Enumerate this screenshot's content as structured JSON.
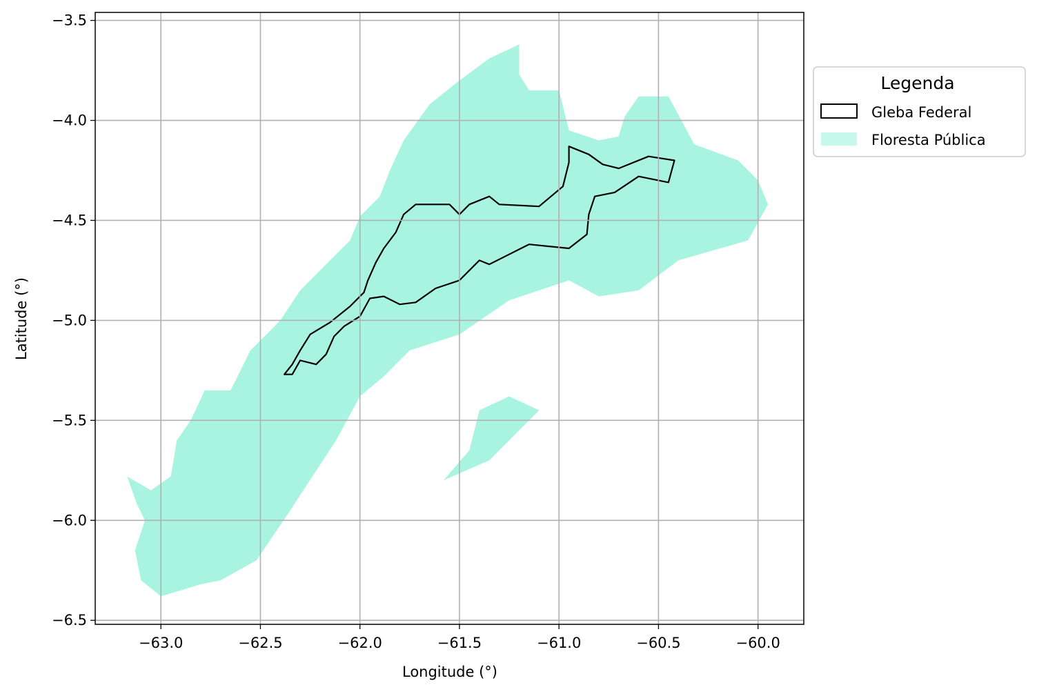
{
  "chart_data": {
    "type": "map",
    "xlabel": "Longitude (°)",
    "ylabel": "Latitude (°)",
    "xlim": [
      -63.33,
      -59.77
    ],
    "ylim": [
      -6.52,
      -3.46
    ],
    "xticks": [
      -63.0,
      -62.5,
      -62.0,
      -61.5,
      -61.0,
      -60.5,
      -60.0
    ],
    "yticks": [
      -3.5,
      -4.0,
      -4.5,
      -5.0,
      -5.5,
      -6.0,
      -6.5
    ],
    "xtick_labels": [
      "−63.0",
      "−62.5",
      "−62.0",
      "−61.5",
      "−61.0",
      "−60.5",
      "−60.0"
    ],
    "ytick_labels": [
      "−3.5",
      "−4.0",
      "−4.5",
      "−5.0",
      "−5.5",
      "−6.0",
      "−6.5"
    ],
    "grid": true,
    "legend": {
      "title": "Legenda",
      "placement": "outside-right-top",
      "entries": [
        {
          "label": "Gleba Federal",
          "style": "outline",
          "color": "#000000"
        },
        {
          "label": "Floresta Pública",
          "style": "fill",
          "color": "#a8f4e0"
        }
      ]
    },
    "layers": [
      {
        "name": "Floresta Pública",
        "style": "fill",
        "color": "#a8f4e0",
        "polygons": [
          [
            [
              -62.0,
              -4.48
            ],
            [
              -61.9,
              -4.38
            ],
            [
              -61.85,
              -4.25
            ],
            [
              -61.78,
              -4.1
            ],
            [
              -61.65,
              -3.92
            ],
            [
              -61.5,
              -3.8
            ],
            [
              -61.35,
              -3.69
            ],
            [
              -61.2,
              -3.62
            ],
            [
              -61.2,
              -3.77
            ],
            [
              -61.15,
              -3.85
            ],
            [
              -61.0,
              -3.85
            ],
            [
              -60.95,
              -4.05
            ],
            [
              -60.8,
              -4.1
            ],
            [
              -60.7,
              -4.08
            ],
            [
              -60.67,
              -3.98
            ],
            [
              -60.6,
              -3.88
            ],
            [
              -60.45,
              -3.88
            ],
            [
              -60.32,
              -4.12
            ],
            [
              -60.1,
              -4.2
            ],
            [
              -60.0,
              -4.3
            ],
            [
              -59.95,
              -4.42
            ],
            [
              -60.05,
              -4.6
            ],
            [
              -60.4,
              -4.7
            ],
            [
              -60.6,
              -4.85
            ],
            [
              -60.8,
              -4.88
            ],
            [
              -60.95,
              -4.8
            ],
            [
              -61.25,
              -4.9
            ],
            [
              -61.5,
              -5.07
            ],
            [
              -61.75,
              -5.15
            ],
            [
              -61.88,
              -5.28
            ],
            [
              -62.0,
              -5.38
            ],
            [
              -62.12,
              -5.6
            ],
            [
              -62.35,
              -5.95
            ],
            [
              -62.52,
              -6.2
            ],
            [
              -62.7,
              -6.3
            ],
            [
              -62.8,
              -6.32
            ],
            [
              -63.0,
              -6.38
            ],
            [
              -63.1,
              -6.3
            ],
            [
              -63.13,
              -6.15
            ],
            [
              -63.08,
              -6.0
            ],
            [
              -63.12,
              -5.92
            ],
            [
              -63.17,
              -5.78
            ],
            [
              -63.05,
              -5.85
            ],
            [
              -62.95,
              -5.78
            ],
            [
              -62.92,
              -5.6
            ],
            [
              -62.85,
              -5.5
            ],
            [
              -62.78,
              -5.35
            ],
            [
              -62.65,
              -5.35
            ],
            [
              -62.55,
              -5.15
            ],
            [
              -62.4,
              -5.0
            ],
            [
              -62.3,
              -4.85
            ],
            [
              -62.15,
              -4.7
            ],
            [
              -62.05,
              -4.6
            ]
          ],
          [
            [
              -61.4,
              -5.45
            ],
            [
              -61.25,
              -5.38
            ],
            [
              -61.1,
              -5.45
            ],
            [
              -61.2,
              -5.55
            ],
            [
              -61.35,
              -5.7
            ],
            [
              -61.58,
              -5.8
            ],
            [
              -61.45,
              -5.65
            ]
          ]
        ]
      },
      {
        "name": "Gleba Federal",
        "style": "outline",
        "color": "#000000",
        "polygons": [
          [
            [
              -62.38,
              -5.27
            ],
            [
              -62.34,
              -5.22
            ],
            [
              -62.3,
              -5.15
            ],
            [
              -62.25,
              -5.07
            ],
            [
              -62.15,
              -5.01
            ],
            [
              -62.05,
              -4.93
            ],
            [
              -61.98,
              -4.86
            ],
            [
              -61.96,
              -4.8
            ],
            [
              -61.92,
              -4.71
            ],
            [
              -61.88,
              -4.64
            ],
            [
              -61.82,
              -4.56
            ],
            [
              -61.78,
              -4.47
            ],
            [
              -61.72,
              -4.42
            ],
            [
              -61.55,
              -4.42
            ],
            [
              -61.5,
              -4.47
            ],
            [
              -61.45,
              -4.42
            ],
            [
              -61.35,
              -4.38
            ],
            [
              -61.3,
              -4.42
            ],
            [
              -61.1,
              -4.43
            ],
            [
              -60.98,
              -4.33
            ],
            [
              -60.95,
              -4.21
            ],
            [
              -60.95,
              -4.13
            ],
            [
              -60.85,
              -4.17
            ],
            [
              -60.78,
              -4.22
            ],
            [
              -60.7,
              -4.24
            ],
            [
              -60.55,
              -4.18
            ],
            [
              -60.42,
              -4.2
            ],
            [
              -60.45,
              -4.31
            ],
            [
              -60.6,
              -4.28
            ],
            [
              -60.72,
              -4.36
            ],
            [
              -60.82,
              -4.38
            ],
            [
              -60.85,
              -4.47
            ],
            [
              -60.86,
              -4.57
            ],
            [
              -60.95,
              -4.64
            ],
            [
              -61.05,
              -4.63
            ],
            [
              -61.15,
              -4.62
            ],
            [
              -61.25,
              -4.67
            ],
            [
              -61.35,
              -4.72
            ],
            [
              -61.4,
              -4.7
            ],
            [
              -61.5,
              -4.8
            ],
            [
              -61.62,
              -4.84
            ],
            [
              -61.72,
              -4.91
            ],
            [
              -61.8,
              -4.92
            ],
            [
              -61.88,
              -4.88
            ],
            [
              -61.95,
              -4.89
            ],
            [
              -62.0,
              -4.98
            ],
            [
              -62.08,
              -5.03
            ],
            [
              -62.13,
              -5.08
            ],
            [
              -62.17,
              -5.17
            ],
            [
              -62.22,
              -5.22
            ],
            [
              -62.3,
              -5.2
            ],
            [
              -62.34,
              -5.27
            ]
          ]
        ]
      }
    ]
  }
}
